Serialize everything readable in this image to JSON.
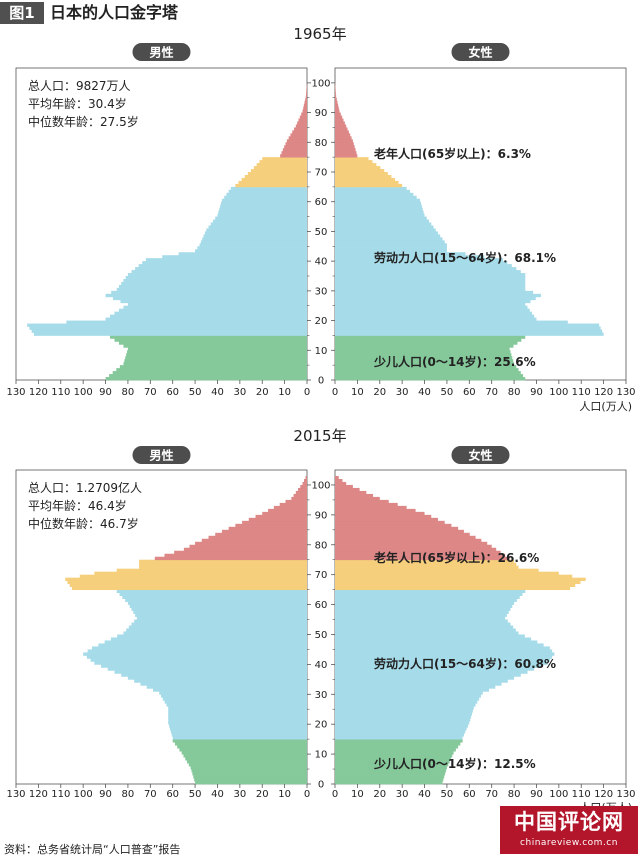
{
  "figure": {
    "label": "图1",
    "title": "日本的人口金字塔"
  },
  "source": "资料：总务省统计局“人口普查”报告",
  "watermark": {
    "name": "中国评论网",
    "url": "chinareview.com.cn"
  },
  "colors": {
    "young": "#85c99a",
    "working": "#a6dbe9",
    "elderly_lower": "#f6cf7c",
    "elderly_upper": "#dd8787",
    "pill": "#4d4d4d",
    "axis": "#555555"
  },
  "chart_data": [
    {
      "type": "population-pyramid",
      "title": "1965年",
      "left_label": "男性",
      "right_label": "女性",
      "x_unit_label": "人口(万人)",
      "x_ticks": [
        0,
        10,
        20,
        30,
        40,
        50,
        60,
        70,
        80,
        90,
        100,
        110,
        120,
        130
      ],
      "x_range": [
        0,
        130
      ],
      "age_ticks": [
        0,
        10,
        20,
        30,
        40,
        50,
        60,
        70,
        80,
        90,
        100
      ],
      "age_range": [
        0,
        105
      ],
      "stats": [
        "总人口：9827万人",
        "平均年龄：30.4岁",
        "中位数年龄：27.5岁"
      ],
      "groups": [
        {
          "key": "young",
          "label": "少儿人口(0～14岁)：25.6%",
          "ages": [
            0,
            14
          ]
        },
        {
          "key": "working",
          "label": "劳动力人口(15～64岁)：68.1%",
          "ages": [
            15,
            64
          ]
        },
        {
          "key": "elderly",
          "label": "老年人口(65岁以上)：6.3%",
          "ages": [
            65,
            105
          ]
        }
      ],
      "male": [
        [
          0,
          90
        ],
        [
          5,
          82
        ],
        [
          10,
          80
        ],
        [
          14,
          88
        ],
        [
          15,
          122
        ],
        [
          18,
          125
        ],
        [
          20,
          90
        ],
        [
          25,
          80
        ],
        [
          28,
          90
        ],
        [
          30,
          85
        ],
        [
          35,
          80
        ],
        [
          40,
          72
        ],
        [
          43,
          50
        ],
        [
          45,
          48
        ],
        [
          50,
          45
        ],
        [
          55,
          40
        ],
        [
          60,
          38
        ],
        [
          64,
          34
        ],
        [
          65,
          32
        ],
        [
          70,
          25
        ],
        [
          74,
          20
        ],
        [
          75,
          12
        ],
        [
          80,
          9
        ],
        [
          85,
          5
        ],
        [
          90,
          2
        ],
        [
          95,
          0.5
        ],
        [
          100,
          0
        ]
      ],
      "female": [
        [
          0,
          85
        ],
        [
          5,
          80
        ],
        [
          10,
          78
        ],
        [
          14,
          85
        ],
        [
          15,
          120
        ],
        [
          18,
          118
        ],
        [
          20,
          90
        ],
        [
          25,
          85
        ],
        [
          28,
          92
        ],
        [
          30,
          85
        ],
        [
          35,
          85
        ],
        [
          40,
          75
        ],
        [
          43,
          50
        ],
        [
          45,
          50
        ],
        [
          50,
          45
        ],
        [
          55,
          40
        ],
        [
          60,
          38
        ],
        [
          64,
          32
        ],
        [
          65,
          30
        ],
        [
          70,
          22
        ],
        [
          74,
          15
        ],
        [
          75,
          10
        ],
        [
          80,
          8
        ],
        [
          85,
          5
        ],
        [
          90,
          2
        ],
        [
          95,
          0.5
        ],
        [
          100,
          0
        ]
      ]
    },
    {
      "type": "population-pyramid",
      "title": "2015年",
      "left_label": "男性",
      "right_label": "女性",
      "x_unit_label": "人口(万人)",
      "x_ticks": [
        0,
        10,
        20,
        30,
        40,
        50,
        60,
        70,
        80,
        90,
        100,
        110,
        120,
        130
      ],
      "x_range": [
        0,
        130
      ],
      "age_ticks": [
        0,
        10,
        20,
        30,
        40,
        50,
        60,
        70,
        80,
        90,
        100
      ],
      "age_range": [
        0,
        105
      ],
      "stats": [
        "总人口：1.2709亿人",
        "平均年龄：46.4岁",
        "中位数年龄：46.7岁"
      ],
      "groups": [
        {
          "key": "young",
          "label": "少儿人口(0～14岁)：12.5%",
          "ages": [
            0,
            14
          ]
        },
        {
          "key": "working",
          "label": "劳动力人口(15～64岁)：60.8%",
          "ages": [
            15,
            64
          ]
        },
        {
          "key": "elderly",
          "label": "老年人口(65岁以上)：26.6%",
          "ages": [
            65,
            105
          ]
        }
      ],
      "male": [
        [
          0,
          50
        ],
        [
          5,
          52
        ],
        [
          10,
          56
        ],
        [
          14,
          60
        ],
        [
          15,
          60
        ],
        [
          20,
          62
        ],
        [
          25,
          62
        ],
        [
          30,
          66
        ],
        [
          35,
          80
        ],
        [
          40,
          95
        ],
        [
          43,
          100
        ],
        [
          45,
          96
        ],
        [
          50,
          82
        ],
        [
          55,
          76
        ],
        [
          60,
          80
        ],
        [
          64,
          85
        ],
        [
          65,
          105
        ],
        [
          68,
          108
        ],
        [
          70,
          95
        ],
        [
          72,
          75
        ],
        [
          74,
          75
        ],
        [
          75,
          68
        ],
        [
          78,
          55
        ],
        [
          80,
          50
        ],
        [
          85,
          35
        ],
        [
          90,
          20
        ],
        [
          95,
          7
        ],
        [
          100,
          2
        ],
        [
          103,
          0
        ]
      ],
      "female": [
        [
          0,
          48
        ],
        [
          5,
          50
        ],
        [
          10,
          53
        ],
        [
          14,
          57
        ],
        [
          15,
          57
        ],
        [
          20,
          60
        ],
        [
          25,
          62
        ],
        [
          30,
          66
        ],
        [
          35,
          80
        ],
        [
          40,
          95
        ],
        [
          43,
          98
        ],
        [
          45,
          96
        ],
        [
          50,
          82
        ],
        [
          55,
          76
        ],
        [
          60,
          80
        ],
        [
          64,
          85
        ],
        [
          65,
          105
        ],
        [
          68,
          112
        ],
        [
          70,
          100
        ],
        [
          72,
          82
        ],
        [
          74,
          80
        ],
        [
          75,
          78
        ],
        [
          78,
          72
        ],
        [
          80,
          68
        ],
        [
          85,
          55
        ],
        [
          90,
          40
        ],
        [
          95,
          20
        ],
        [
          100,
          5
        ],
        [
          103,
          0
        ]
      ]
    }
  ]
}
